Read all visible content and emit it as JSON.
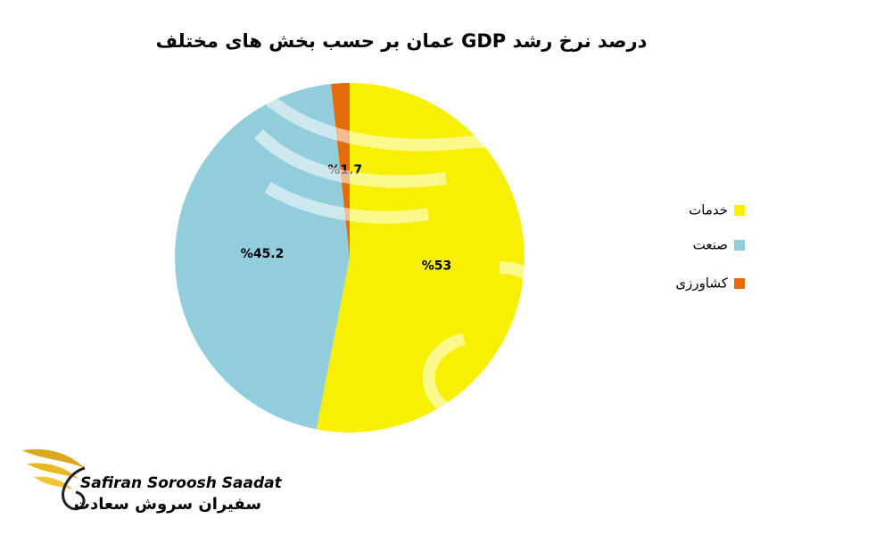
{
  "chart_data": {
    "type": "pie",
    "title": "درصد نرخ رشد GDP عمان بر حسب بخش های مختلف",
    "categories": [
      "خدمات",
      "صنعت",
      "کشاورزی"
    ],
    "values": [
      53,
      45.2,
      1.7
    ],
    "value_labels": [
      "%53",
      "%45.2",
      "%1.7"
    ],
    "colors": [
      "#f7f000",
      "#92cddc",
      "#e36c0a"
    ],
    "legend": "right"
  },
  "logo": {
    "name_en": "Safiran Soroosh Saadat",
    "name_fa": "سفیران سروش سعادت"
  }
}
